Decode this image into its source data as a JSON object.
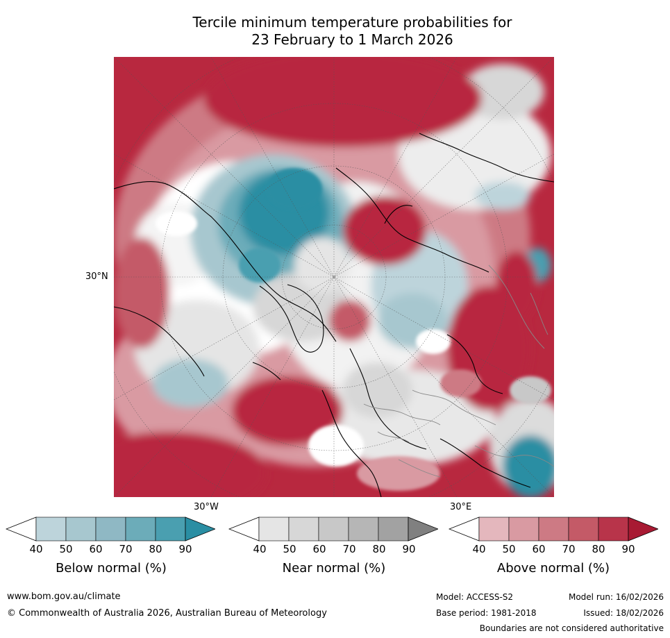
{
  "title": {
    "line1": "Tercile minimum temperature probabilities for",
    "line2": "23 February to 1 March 2026"
  },
  "map": {
    "lat_label": "30°N",
    "lon_label_west": "30°W",
    "lon_label_east": "30°E"
  },
  "colorbars": [
    {
      "label": "Below normal (%)",
      "ticks": [
        "40",
        "50",
        "60",
        "70",
        "80",
        "90"
      ],
      "colors": [
        "#ffffff",
        "#bdd4db",
        "#a7c7cf",
        "#8fb8c4",
        "#6cacb9",
        "#4a9fb0",
        "#2a8ea3"
      ]
    },
    {
      "label": "Near normal (%)",
      "ticks": [
        "40",
        "50",
        "60",
        "70",
        "80",
        "90"
      ],
      "colors": [
        "#ffffff",
        "#e5e5e5",
        "#d7d7d7",
        "#c8c8c8",
        "#b6b6b6",
        "#a2a2a2",
        "#808080"
      ]
    },
    {
      "label": "Above normal (%)",
      "ticks": [
        "40",
        "50",
        "60",
        "70",
        "80",
        "90"
      ],
      "colors": [
        "#ffffff",
        "#e4b7bd",
        "#d99aa2",
        "#cd7a84",
        "#c45a67",
        "#b8344a",
        "#a81a33"
      ]
    }
  ],
  "footer": {
    "website": "www.bom.gov.au/climate",
    "copyright": "© Commonwealth of Australia 2026, Australian Bureau of Meteorology",
    "model": "Model: ACCESS-S2",
    "model_run": "Model run: 16/02/2026",
    "base_period": "Base period: 1981-2018",
    "issued": "Issued: 18/02/2026",
    "disclaimer": "Boundaries are not considered authoritative"
  }
}
